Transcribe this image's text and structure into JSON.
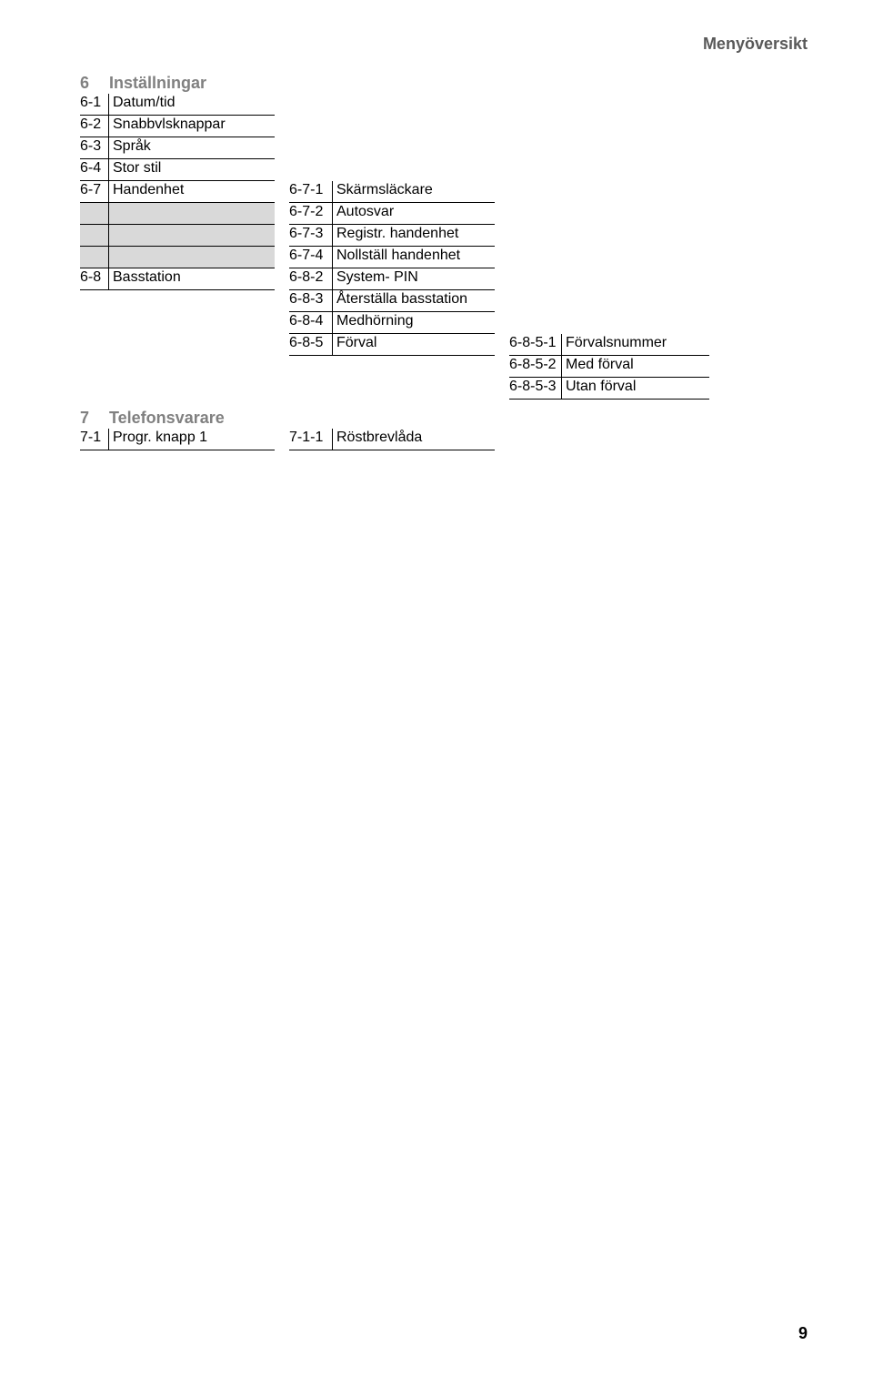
{
  "header": "Menyöversikt",
  "page_number": "9",
  "section6": {
    "num": "6",
    "title": "Inställningar",
    "rows": [
      {
        "a_code": "6-1",
        "a_name": "Datum/tid"
      },
      {
        "a_code": "6-2",
        "a_name": "Snabbvlsknappar"
      },
      {
        "a_code": "6-3",
        "a_name": "Språk"
      },
      {
        "a_code": "6-4",
        "a_name": "Stor stil"
      },
      {
        "a_code": "6-7",
        "a_name": "Handenhet",
        "b_code": "6-7-1",
        "b_name": "Skärmsläckare"
      },
      {
        "shaded": true,
        "b_code": "6-7-2",
        "b_name": "Autosvar"
      },
      {
        "shaded": true,
        "b_code": "6-7-3",
        "b_name": "Registr. handenhet"
      },
      {
        "shaded": true,
        "b_code": "6-7-4",
        "b_name": "Nollställ handenhet"
      },
      {
        "a_code": "6-8",
        "a_name": "Basstation",
        "b_code": "6-8-2",
        "b_name": "System- PIN"
      },
      {
        "b_code": "6-8-3",
        "b_name": "Återställa basstation"
      },
      {
        "b_code": "6-8-4",
        "b_name": "Medhörning"
      },
      {
        "b_code": "6-8-5",
        "b_name": "Förval",
        "c_code": "6-8-5-1",
        "c_name": "Förvalsnummer"
      },
      {
        "c_code": "6-8-5-2",
        "c_name": "Med förval"
      },
      {
        "c_code": "6-8-5-3",
        "c_name": "Utan förval"
      }
    ]
  },
  "section7": {
    "num": "7",
    "title": "Telefonsvarare",
    "rows": [
      {
        "a_code": "7-1",
        "a_name": "Progr. knapp 1",
        "b_code": "7-1-1",
        "b_name": "Röstbrevlåda"
      }
    ]
  }
}
